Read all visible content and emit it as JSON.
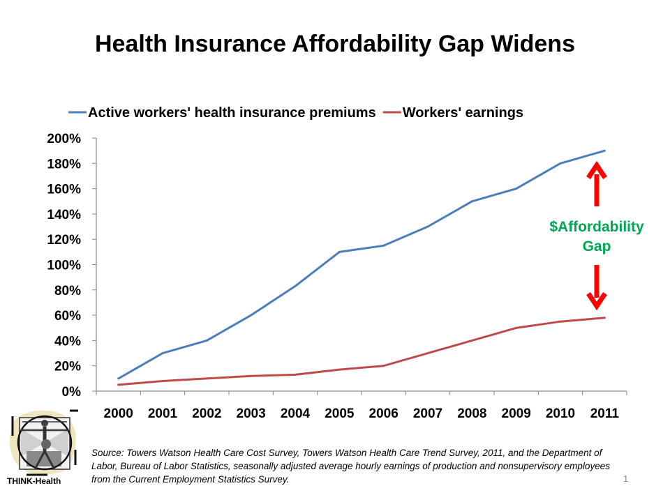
{
  "slide": {
    "title": "Health Insurance Affordability Gap Widens",
    "page_number": "1",
    "logo_label": "THINK-Health",
    "source_text": "Source: Towers Watson Health Care Cost Survey, Towers Watson Health Care Trend Survey, 2011, and the Department of Labor, Bureau of Labor Statistics, seasonally adjusted average hourly earnings of production and nonsupervisory employees from the Current Employment Statistics Survey."
  },
  "annotation": {
    "line1": "$Affordability",
    "line2": "Gap",
    "text_color": "#00a651",
    "arrow_color": "#ff0000"
  },
  "chart_data": {
    "type": "line",
    "title": "Health Insurance Affordability Gap Widens",
    "xlabel": "",
    "ylabel": "",
    "categories": [
      "2000",
      "2001",
      "2002",
      "2003",
      "2004",
      "2005",
      "2006",
      "2007",
      "2008",
      "2009",
      "2010",
      "2011"
    ],
    "ylim": [
      0,
      200
    ],
    "yticks": [
      0,
      20,
      40,
      60,
      80,
      100,
      120,
      140,
      160,
      180,
      200
    ],
    "ytick_labels": [
      "0%",
      "20%",
      "40%",
      "60%",
      "80%",
      "100%",
      "120%",
      "140%",
      "160%",
      "180%",
      "200%"
    ],
    "grid": false,
    "legend_position": "top",
    "series": [
      {
        "name": "Active workers' health insurance premiums",
        "color": "#4a7ebb",
        "values": [
          10,
          30,
          40,
          60,
          83,
          110,
          115,
          130,
          150,
          160,
          180,
          190
        ]
      },
      {
        "name": "Workers' earnings",
        "color": "#be4b48",
        "values": [
          5,
          8,
          10,
          12,
          13,
          17,
          20,
          30,
          40,
          50,
          55,
          58
        ]
      }
    ]
  }
}
